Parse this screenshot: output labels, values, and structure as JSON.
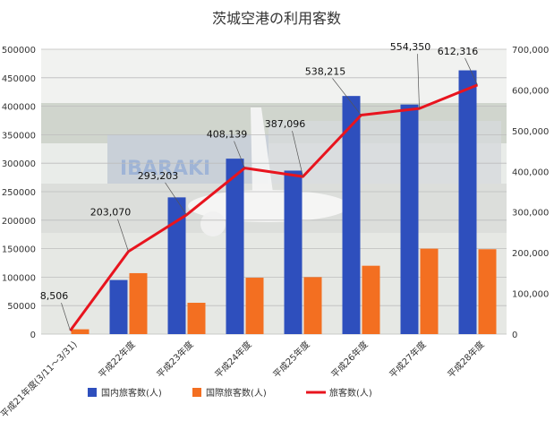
{
  "chart_data": {
    "type": "bar",
    "title": "茨城空港の利用客数",
    "categories": [
      "平成21年度(3/11～3/31)",
      "平成22年度",
      "平成23年度",
      "平成24年度",
      "平成25年度",
      "平成26年度",
      "平成27年度",
      "平成28年度"
    ],
    "series": [
      {
        "name": "国内旅客数(人)",
        "type": "bar",
        "axis": "left",
        "color": "#2e4fbd",
        "values": [
          0,
          95000,
          240000,
          308000,
          287000,
          418000,
          403000,
          463000
        ]
      },
      {
        "name": "国際旅客数(人)",
        "type": "bar",
        "axis": "left",
        "color": "#f36f21",
        "values": [
          8500,
          107000,
          55000,
          99000,
          100000,
          120000,
          150000,
          149000
        ]
      },
      {
        "name": "旅客数(人)",
        "type": "line",
        "axis": "right",
        "color": "#e8141e",
        "values": [
          8506,
          203070,
          293203,
          408139,
          387096,
          538215,
          554350,
          612316
        ],
        "labels": [
          "8,506",
          "203,070",
          "293,203",
          "408,139",
          "387,096",
          "538,215",
          "554,350",
          "612,316"
        ]
      }
    ],
    "y_left": {
      "min": 0,
      "max": 500000,
      "step": 50000,
      "ticks": [
        "0",
        "50000",
        "100000",
        "150000",
        "200000",
        "250000",
        "300000",
        "350000",
        "400000",
        "450000",
        "500000"
      ]
    },
    "y_right": {
      "min": 0,
      "max": 700000,
      "step": 100000,
      "ticks": [
        "0",
        "100,000",
        "200,000",
        "300,000",
        "400,000",
        "500,000",
        "600,000",
        "700,000"
      ]
    },
    "legend_position": "bottom",
    "grid": true,
    "background_photo_text": "IBARAKI"
  }
}
